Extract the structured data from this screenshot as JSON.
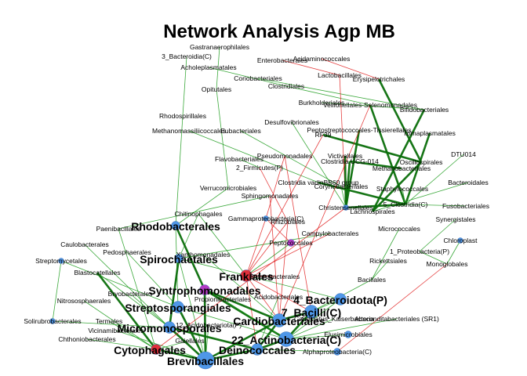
{
  "title": "Network Analysis Agp MB",
  "colors": {
    "positive": "#1a9a1a",
    "strong": "#0a6e0a",
    "negative": "#e02020",
    "node_default": "#4f97e8",
    "node_red": "#e0303a",
    "node_purple": "#b23bc4",
    "node_pink": "#d07fa8",
    "node_gray": "#9aa6b8"
  },
  "nodes": [
    {
      "id": "gastra",
      "label": "Gastranaerophilales",
      "size": 0,
      "color": "node_default",
      "bold": false
    },
    {
      "id": "bact3",
      "label": "3_Bacteroidia(C)",
      "size": 0,
      "color": "node_default",
      "bold": false
    },
    {
      "id": "entero",
      "label": "Enterobacterales",
      "size": 0,
      "color": "node_default",
      "bold": false
    },
    {
      "id": "acida",
      "label": "Acidaminococcales",
      "size": 0,
      "color": "node_default",
      "bold": false
    },
    {
      "id": "acholep",
      "label": "Acholeplasmatales",
      "size": 0,
      "color": "node_default",
      "bold": false
    },
    {
      "id": "lacto",
      "label": "Lactobacillales",
      "size": 0,
      "color": "node_default",
      "bold": false
    },
    {
      "id": "corio",
      "label": "Coriobacteriales",
      "size": 0,
      "color": "node_default",
      "bold": false
    },
    {
      "id": "erysip",
      "label": "Erysipelotrichales",
      "size": 0,
      "color": "node_default",
      "bold": false
    },
    {
      "id": "opitut",
      "label": "Opitutales",
      "size": 0,
      "color": "node_default",
      "bold": false
    },
    {
      "id": "clostr",
      "label": "Clostridiales",
      "size": 0,
      "color": "node_default",
      "bold": false
    },
    {
      "id": "burk",
      "label": "Burkholderiales",
      "size": 0,
      "color": "node_default",
      "bold": false
    },
    {
      "id": "veill",
      "label": "Veillonellales-Selenomonadales",
      "size": 0,
      "color": "node_default",
      "bold": false
    },
    {
      "id": "bifido",
      "label": "Bifidobacteriales",
      "size": 0,
      "color": "node_default",
      "bold": false
    },
    {
      "id": "rhodosp",
      "label": "Rhodospirillales",
      "size": 0,
      "color": "node_default",
      "bold": false
    },
    {
      "id": "desulf",
      "label": "Desulfovibrionales",
      "size": 0,
      "color": "node_default",
      "bold": false
    },
    {
      "id": "methmass",
      "label": "Methanomassiliicoccales",
      "size": 0,
      "color": "node_default",
      "bold": false
    },
    {
      "id": "eubact",
      "label": "Eubacteriales",
      "size": 0,
      "color": "node_default",
      "bold": false
    },
    {
      "id": "peptostr",
      "label": "Peptostreptococcales-Tissierellales",
      "size": 0,
      "color": "node_default",
      "bold": false
    },
    {
      "id": "rf39",
      "label": "RF39",
      "size": 0,
      "color": "node_default",
      "bold": false
    },
    {
      "id": "izimap",
      "label": "Izimaplasmatales",
      "size": 0,
      "color": "node_default",
      "bold": false
    },
    {
      "id": "dtu014",
      "label": "DTU014",
      "size": 0,
      "color": "node_default",
      "bold": false
    },
    {
      "id": "pseudomon",
      "label": "Pseudomonadales",
      "size": 0,
      "color": "node_default",
      "bold": false
    },
    {
      "id": "victiv",
      "label": "Victivallales",
      "size": 0,
      "color": "node_default",
      "bold": false
    },
    {
      "id": "flavo",
      "label": "Flavobacteriales",
      "size": 0,
      "color": "node_default",
      "bold": false
    },
    {
      "id": "ucg014",
      "label": "Clostridia UCG-014",
      "size": 0,
      "color": "node_default",
      "bold": false
    },
    {
      "id": "oscill",
      "label": "Oscillospirales",
      "size": 0,
      "color": "node_default",
      "bold": false
    },
    {
      "id": "firm2",
      "label": "2_Firmicutes(P)",
      "size": 0,
      "color": "node_default",
      "bold": false
    },
    {
      "id": "methanob",
      "label": "Methanobacteriales",
      "size": 0,
      "color": "node_default",
      "bold": false
    },
    {
      "id": "bacteroidales",
      "label": "Bacteroidales",
      "size": 0,
      "color": "node_default",
      "bold": false
    },
    {
      "id": "vadin",
      "label": "Clostridia vadinBB60 group",
      "size": 0,
      "color": "node_default",
      "bold": false
    },
    {
      "id": "coryne",
      "label": "Corynebacteriales",
      "size": 0,
      "color": "node_default",
      "bold": false
    },
    {
      "id": "staph",
      "label": "Staphylococcales",
      "size": 0,
      "color": "node_default",
      "bold": false
    },
    {
      "id": "verruco",
      "label": "Verrucomicrobiales",
      "size": 0,
      "color": "node_default",
      "bold": false
    },
    {
      "id": "sphingo",
      "label": "Sphingomonadales",
      "size": 0,
      "color": "node_default",
      "bold": false
    },
    {
      "id": "clostr5",
      "label": "5_Clostridia(C)",
      "size": 0,
      "color": "node_default",
      "bold": false
    },
    {
      "id": "fuso",
      "label": "Fusobacteriales",
      "size": 0,
      "color": "node_default",
      "bold": false
    },
    {
      "id": "christ",
      "label": "Christensenellales",
      "size": 2,
      "color": "node_default",
      "bold": false
    },
    {
      "id": "lachno",
      "label": "Lachnospirales",
      "size": 0,
      "color": "node_default",
      "bold": false
    },
    {
      "id": "chitino",
      "label": "Chitinophagales",
      "size": 0,
      "color": "node_default",
      "bold": false
    },
    {
      "id": "gamma",
      "label": "Gammaproteobacteria(C)",
      "size": 2,
      "color": "node_default",
      "bold": false
    },
    {
      "id": "synerg",
      "label": "Synergistales",
      "size": 0,
      "color": "node_default",
      "bold": false
    },
    {
      "id": "rhodob",
      "label": "Rhodobacterales",
      "size": 4,
      "color": "node_default",
      "bold": true
    },
    {
      "id": "rhizob",
      "label": "Rhizobiales",
      "size": 0,
      "color": "node_default",
      "bold": false
    },
    {
      "id": "paeni",
      "label": "Paenibacillales",
      "size": 0,
      "color": "node_default",
      "bold": false
    },
    {
      "id": "micrococ",
      "label": "Micrococcales",
      "size": 0,
      "color": "node_default",
      "bold": false
    },
    {
      "id": "campylo",
      "label": "Campylobacterales",
      "size": 0,
      "color": "node_default",
      "bold": false
    },
    {
      "id": "chloro",
      "label": "Chloroplast",
      "size": 2,
      "color": "node_default",
      "bold": false
    },
    {
      "id": "caulo",
      "label": "Caulobacterales",
      "size": 0,
      "color": "node_default",
      "bold": false
    },
    {
      "id": "pepto",
      "label": "Peptococcales",
      "size": 3,
      "color": "node_purple",
      "bold": false
    },
    {
      "id": "proteo1",
      "label": "1_Proteobacteria(P)",
      "size": 0,
      "color": "node_default",
      "bold": false
    },
    {
      "id": "pedosph",
      "label": "Pedosphaerales",
      "size": 0,
      "color": "node_default",
      "bold": false
    },
    {
      "id": "spiro",
      "label": "Spirochaetales",
      "size": 4,
      "color": "node_default",
      "bold": true
    },
    {
      "id": "strepto",
      "label": "Streptomycetales",
      "size": 2,
      "color": "node_default",
      "bold": false
    },
    {
      "id": "xantho",
      "label": "Xanthomonadales",
      "size": 0,
      "color": "node_default",
      "bold": false
    },
    {
      "id": "monoglob",
      "label": "Monoglobales",
      "size": 0,
      "color": "node_default",
      "bold": false
    },
    {
      "id": "ricket",
      "label": "Rickettsiales",
      "size": 0,
      "color": "node_default",
      "bold": false
    },
    {
      "id": "blasto",
      "label": "Blastocatellales",
      "size": 0,
      "color": "node_default",
      "bold": false
    },
    {
      "id": "frankia",
      "label": "Frankiales",
      "size": 6,
      "color": "node_red",
      "bold": true
    },
    {
      "id": "enterob2",
      "label": "Enterobacterales",
      "size": 0,
      "color": "node_default",
      "bold": false
    },
    {
      "id": "bacilla",
      "label": "Bacillales",
      "size": 0,
      "color": "node_default",
      "bold": false
    },
    {
      "id": "syntro",
      "label": "Syntrophomonadales",
      "size": 5,
      "color": "node_purple",
      "bold": true
    },
    {
      "id": "bryo",
      "label": "Bryobacterales",
      "size": 0,
      "color": "node_default",
      "bold": false
    },
    {
      "id": "nitroso",
      "label": "Nitrososphaerales",
      "size": 0,
      "color": "node_default",
      "bold": false
    },
    {
      "id": "propion",
      "label": "Propionibacteriales",
      "size": 0,
      "color": "node_default",
      "bold": false
    },
    {
      "id": "acidob",
      "label": "Acidobacteriales",
      "size": 0,
      "color": "node_default",
      "bold": false
    },
    {
      "id": "bacteroidota",
      "label": "4_Bacteroidota(P)",
      "size": 6,
      "color": "node_default",
      "bold": true
    },
    {
      "id": "streptosp",
      "label": "Streptosporangiales",
      "size": 6,
      "color": "node_default",
      "bold": true
    },
    {
      "id": "bacilli7",
      "label": "7_Bacilli(C)",
      "size": 7,
      "color": "node_default",
      "bold": true
    },
    {
      "id": "solirub",
      "label": "Solirubrobacterales",
      "size": 2,
      "color": "node_default",
      "bold": false
    },
    {
      "id": "termales",
      "label": "Termales",
      "size": 0,
      "color": "node_default",
      "bold": false
    },
    {
      "id": "cardio",
      "label": "Cardiobacteriales",
      "size": 7,
      "color": "node_default",
      "bold": true
    },
    {
      "id": "vicinam",
      "label": "Vicinamibacterales",
      "size": 0,
      "color": "node_default",
      "bold": false
    },
    {
      "id": "oscillo12",
      "label": "12_Acidobacteriota(P)",
      "size": 0,
      "color": "node_default",
      "bold": false
    },
    {
      "id": "microm",
      "label": "Micromonosporales",
      "size": 6,
      "color": "node_default",
      "bold": true
    },
    {
      "id": "candid",
      "label": "Candidatus_Kaiserbacteria",
      "size": 0,
      "color": "node_default",
      "bold": false
    },
    {
      "id": "sr1",
      "label": "Absconditabacteriales (SR1)",
      "size": 0,
      "color": "node_default",
      "bold": false
    },
    {
      "id": "chthon",
      "label": "Chthoniobacterales",
      "size": 0,
      "color": "node_default",
      "bold": false
    },
    {
      "id": "actino22",
      "label": "22_Actinobacteria(C)",
      "size": 8,
      "color": "node_default",
      "bold": true
    },
    {
      "id": "elusim",
      "label": "Elusimicrobiales",
      "size": 3,
      "color": "node_default",
      "bold": false
    },
    {
      "id": "gaiell",
      "label": "Gaiellales",
      "size": 0,
      "color": "node_default",
      "bold": false
    },
    {
      "id": "cytoph",
      "label": "Cytophagales",
      "size": 5,
      "color": "node_red",
      "bold": true
    },
    {
      "id": "deino",
      "label": "Deinococcales",
      "size": 6,
      "color": "node_default",
      "bold": true
    },
    {
      "id": "alpha",
      "label": "Alphaproteobacteria(C)",
      "size": 3,
      "color": "node_default",
      "bold": false
    },
    {
      "id": "brevi",
      "label": "Brevibacillales",
      "size": 9,
      "color": "node_default",
      "bold": true
    }
  ],
  "edges": [
    [
      "gastra",
      "opitut",
      "positive"
    ],
    [
      "bact3",
      "rhodosp",
      "positive"
    ],
    [
      "acholep",
      "clostr",
      "positive"
    ],
    [
      "entero",
      "lacto",
      "negative"
    ],
    [
      "acida",
      "erysip",
      "negative"
    ],
    [
      "corio",
      "bifido",
      "positive"
    ],
    [
      "clostr",
      "veill",
      "positive"
    ],
    [
      "lacto",
      "christ",
      "negative"
    ],
    [
      "erysip",
      "oscill",
      "strong"
    ],
    [
      "burk",
      "bifido",
      "positive"
    ],
    [
      "veill",
      "clostr5",
      "strong"
    ],
    [
      "bifido",
      "lachno",
      "strong"
    ],
    [
      "peptostr",
      "christ",
      "strong"
    ],
    [
      "izimap",
      "clostr5",
      "strong"
    ],
    [
      "rf39",
      "oscill",
      "strong"
    ],
    [
      "ucg014",
      "methanob",
      "strong"
    ],
    [
      "vadin",
      "clostr5",
      "strong"
    ],
    [
      "coryne",
      "christ",
      "positive"
    ],
    [
      "staph",
      "clostr5",
      "positive"
    ],
    [
      "bacteroidales",
      "lachno",
      "positive"
    ],
    [
      "dtu014",
      "clostr5",
      "positive"
    ],
    [
      "victiv",
      "christ",
      "strong"
    ],
    [
      "desulf",
      "christ",
      "positive"
    ],
    [
      "eubact",
      "coryne",
      "positive"
    ],
    [
      "opitut",
      "verruco",
      "positive"
    ],
    [
      "methmass",
      "vadin",
      "positive"
    ],
    [
      "flavo",
      "firm2",
      "positive"
    ],
    [
      "pseudomon",
      "gamma",
      "negative"
    ],
    [
      "firm2",
      "rhizob",
      "negative"
    ],
    [
      "sphingo",
      "paeni",
      "positive"
    ],
    [
      "verruco",
      "rhodob",
      "positive"
    ],
    [
      "rhodosp",
      "rhodob",
      "positive"
    ],
    [
      "chitino",
      "spiro",
      "positive"
    ],
    [
      "gamma",
      "frankia",
      "negative"
    ],
    [
      "rhodob",
      "syntro",
      "strong"
    ],
    [
      "rhodob",
      "streptosp",
      "positive"
    ],
    [
      "rhizob",
      "frankia",
      "negative"
    ],
    [
      "rhizob",
      "cardio",
      "negative"
    ],
    [
      "caulo",
      "microm",
      "positive"
    ],
    [
      "paeni",
      "cytoph",
      "positive"
    ],
    [
      "pepto",
      "frankia",
      "positive"
    ],
    [
      "pedosph",
      "streptosp",
      "positive"
    ],
    [
      "spiro",
      "bacteroidota",
      "positive"
    ],
    [
      "spiro",
      "microm",
      "strong"
    ],
    [
      "spiro",
      "brevi",
      "positive"
    ],
    [
      "strepto",
      "streptosp",
      "positive"
    ],
    [
      "strepto",
      "solirub",
      "positive"
    ],
    [
      "xantho",
      "cardio",
      "positive"
    ],
    [
      "blasto",
      "cytoph",
      "strong"
    ],
    [
      "blasto",
      "microm",
      "positive"
    ],
    [
      "campylo",
      "frankia",
      "negative"
    ],
    [
      "frankia",
      "cardio",
      "negative"
    ],
    [
      "frankia",
      "bacilli7",
      "negative"
    ],
    [
      "frankia",
      "deino",
      "negative"
    ],
    [
      "syntro",
      "cardio",
      "strong"
    ],
    [
      "syntro",
      "actino22",
      "strong"
    ],
    [
      "syntro",
      "brevi",
      "strong"
    ],
    [
      "bryo",
      "microm",
      "positive"
    ],
    [
      "nitroso",
      "cytoph",
      "positive"
    ],
    [
      "propion",
      "actino22",
      "positive"
    ],
    [
      "acidob",
      "deino",
      "positive"
    ],
    [
      "bacteroidota",
      "actino22",
      "positive"
    ],
    [
      "bacteroidota",
      "bacilli7",
      "positive"
    ],
    [
      "streptosp",
      "brevi",
      "strong"
    ],
    [
      "streptosp",
      "actino22",
      "positive"
    ],
    [
      "bacilli7",
      "actino22",
      "strong"
    ],
    [
      "bacilli7",
      "cardio",
      "strong"
    ],
    [
      "solirub",
      "microm",
      "positive"
    ],
    [
      "termales",
      "cytoph",
      "positive"
    ],
    [
      "cardio",
      "deino",
      "strong"
    ],
    [
      "cardio",
      "brevi",
      "strong"
    ],
    [
      "vicinam",
      "brevi",
      "positive"
    ],
    [
      "oscillo12",
      "brevi",
      "positive"
    ],
    [
      "microm",
      "brevi",
      "strong"
    ],
    [
      "microm",
      "deino",
      "strong"
    ],
    [
      "candid",
      "actino22",
      "positive"
    ],
    [
      "sr1",
      "actino22",
      "positive"
    ],
    [
      "chthon",
      "cytoph",
      "positive"
    ],
    [
      "actino22",
      "deino",
      "strong"
    ],
    [
      "elusim",
      "actino22",
      "positive"
    ],
    [
      "gaiell",
      "cytoph",
      "positive"
    ],
    [
      "cytoph",
      "brevi",
      "strong"
    ],
    [
      "deino",
      "brevi",
      "strong"
    ],
    [
      "alpha",
      "deino",
      "positive"
    ],
    [
      "micrococ",
      "bacilla",
      "positive"
    ],
    [
      "ricket",
      "bacilla",
      "positive"
    ],
    [
      "proteo1",
      "monoglob",
      "positive"
    ],
    [
      "chloro",
      "monoglob",
      "positive"
    ],
    [
      "synerg",
      "proteo1",
      "positive"
    ],
    [
      "fuso",
      "clostr5",
      "positive"
    ],
    [
      "bacilla",
      "bacilli7",
      "positive"
    ],
    [
      "enterob2",
      "frankia",
      "negative"
    ],
    [
      "campylo",
      "spiro",
      "positive"
    ],
    [
      "christ",
      "ucg014",
      "strong"
    ],
    [
      "clostr5",
      "christ",
      "strong"
    ],
    [
      "lachno",
      "oscill",
      "strong"
    ],
    [
      "gamma",
      "pepto",
      "negative"
    ],
    [
      "sphingo",
      "cardio",
      "negative"
    ],
    [
      "pseudomon",
      "bacilli7",
      "negative"
    ],
    [
      "veill",
      "cardio",
      "negative"
    ],
    [
      "christ",
      "cytoph",
      "negative"
    ],
    [
      "rf39",
      "frankia",
      "negative"
    ],
    [
      "monoglob",
      "alpha",
      "negative"
    ],
    [
      "chitino",
      "frankia",
      "positive"
    ],
    [
      "xantho",
      "spiro",
      "positive"
    ]
  ]
}
